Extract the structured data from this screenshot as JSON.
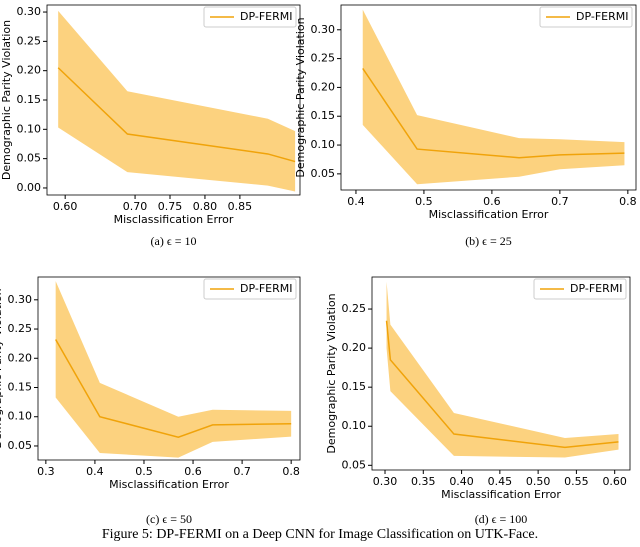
{
  "chart_data": [
    {
      "type": "line",
      "caption": "(a) ϵ = 10",
      "xlabel": "Misclassification Error",
      "ylabel": "Demographic Parity Violation",
      "legend": "upper right",
      "xlim": [
        0.574,
        0.936
      ],
      "ylim": [
        -0.012,
        0.312
      ],
      "xticks": [
        {
          "value": 0.6,
          "label": "0.60"
        },
        {
          "value": 0.7,
          "label": "0.70"
        },
        {
          "value": 0.75,
          "label": "0.75"
        },
        {
          "value": 0.8,
          "label": "0.80"
        },
        {
          "value": 0.85,
          "label": "0.85"
        }
      ],
      "yticks": [
        {
          "value": 0,
          "label": "0.00"
        },
        {
          "value": 0.05,
          "label": "0.05"
        },
        {
          "value": 0.1,
          "label": "0.10"
        },
        {
          "value": 0.15,
          "label": "0.15"
        },
        {
          "value": 0.2,
          "label": "0.20"
        },
        {
          "value": 0.25,
          "label": "0.25"
        },
        {
          "value": 0.3,
          "label": "0.30"
        }
      ],
      "x": [
        0.59,
        0.689,
        0.89,
        0.929
      ],
      "series": [
        {
          "name": "DP-FERMI",
          "color": "#f0a30a",
          "band_color": "#fcd27f",
          "values": [
            0.205,
            0.092,
            0.058,
            0.045
          ],
          "lower": [
            0.103,
            0.027,
            0.004,
            -0.006
          ],
          "upper": [
            0.302,
            0.165,
            0.118,
            0.097
          ]
        }
      ]
    },
    {
      "type": "line",
      "caption": "(b) ϵ = 25",
      "xlabel": "Misclassification Error",
      "ylabel": "Demographic Parity Violation",
      "legend": "upper right",
      "xlim": [
        0.378,
        0.812
      ],
      "ylim": [
        0.022,
        0.343
      ],
      "xticks": [
        0.4,
        0.5,
        0.6,
        0.7,
        0.8
      ],
      "yticks": [
        {
          "value": 0.05,
          "label": "0.05"
        },
        {
          "value": 0.1,
          "label": "0.10"
        },
        {
          "value": 0.15,
          "label": "0.15"
        },
        {
          "value": 0.2,
          "label": "0.20"
        },
        {
          "value": 0.25,
          "label": "0.25"
        },
        {
          "value": 0.3,
          "label": "0.30"
        }
      ],
      "x": [
        0.41,
        0.49,
        0.64,
        0.7,
        0.795
      ],
      "series": [
        {
          "name": "DP-FERMI",
          "color": "#f0a30a",
          "band_color": "#fcd27f",
          "values": [
            0.233,
            0.093,
            0.078,
            0.083,
            0.086
          ],
          "lower": [
            0.135,
            0.032,
            0.045,
            0.058,
            0.065
          ],
          "upper": [
            0.335,
            0.152,
            0.112,
            0.11,
            0.105
          ]
        }
      ]
    },
    {
      "type": "line",
      "caption": "(c) ϵ = 50",
      "xlabel": "Misclassification Error",
      "ylabel": "Demographic Parity Violation",
      "legend": "upper right",
      "xlim": [
        0.284,
        0.818
      ],
      "ylim": [
        0.026,
        0.339
      ],
      "xticks": [
        0.3,
        0.4,
        0.5,
        0.6,
        0.7,
        0.8
      ],
      "yticks": [
        {
          "value": 0.05,
          "label": "0.05"
        },
        {
          "value": 0.1,
          "label": "0.10"
        },
        {
          "value": 0.15,
          "label": "0.15"
        },
        {
          "value": 0.2,
          "label": "0.20"
        },
        {
          "value": 0.25,
          "label": "0.25"
        },
        {
          "value": 0.3,
          "label": "0.30"
        }
      ],
      "x": [
        0.32,
        0.41,
        0.57,
        0.64,
        0.8
      ],
      "series": [
        {
          "name": "DP-FERMI",
          "color": "#f0a30a",
          "band_color": "#fcd27f",
          "values": [
            0.232,
            0.1,
            0.065,
            0.086,
            0.088
          ],
          "lower": [
            0.133,
            0.038,
            0.03,
            0.057,
            0.066
          ],
          "upper": [
            0.332,
            0.158,
            0.1,
            0.112,
            0.11
          ]
        }
      ]
    },
    {
      "type": "line",
      "caption": "(d) ϵ = 100",
      "xlabel": "Misclassification Error",
      "ylabel": "Demographic Parity Violation",
      "legend": "upper right",
      "xlim": [
        0.283,
        0.62
      ],
      "ylim": [
        0.044,
        0.291
      ],
      "xticks": [
        {
          "value": 0.3,
          "label": "0.30"
        },
        {
          "value": 0.35,
          "label": "0.35"
        },
        {
          "value": 0.4,
          "label": "0.40"
        },
        {
          "value": 0.45,
          "label": "0.45"
        },
        {
          "value": 0.5,
          "label": "0.50"
        },
        {
          "value": 0.55,
          "label": "0.55"
        },
        {
          "value": 0.6,
          "label": "0.60"
        }
      ],
      "yticks": [
        {
          "value": 0.05,
          "label": "0.05"
        },
        {
          "value": 0.1,
          "label": "0.10"
        },
        {
          "value": 0.15,
          "label": "0.15"
        },
        {
          "value": 0.2,
          "label": "0.20"
        },
        {
          "value": 0.25,
          "label": "0.25"
        }
      ],
      "x": [
        0.302,
        0.307,
        0.39,
        0.535,
        0.605
      ],
      "series": [
        {
          "name": "DP-FERMI",
          "color": "#f0a30a",
          "band_color": "#fcd27f",
          "values": [
            0.235,
            0.185,
            0.09,
            0.073,
            0.08
          ],
          "lower": [
            0.2,
            0.145,
            0.062,
            0.06,
            0.07
          ],
          "upper": [
            0.285,
            0.23,
            0.117,
            0.085,
            0.09
          ]
        }
      ]
    }
  ],
  "caption": "Figure 5: DP-FERMI on a Deep CNN for Image Classification on UTK-Face."
}
